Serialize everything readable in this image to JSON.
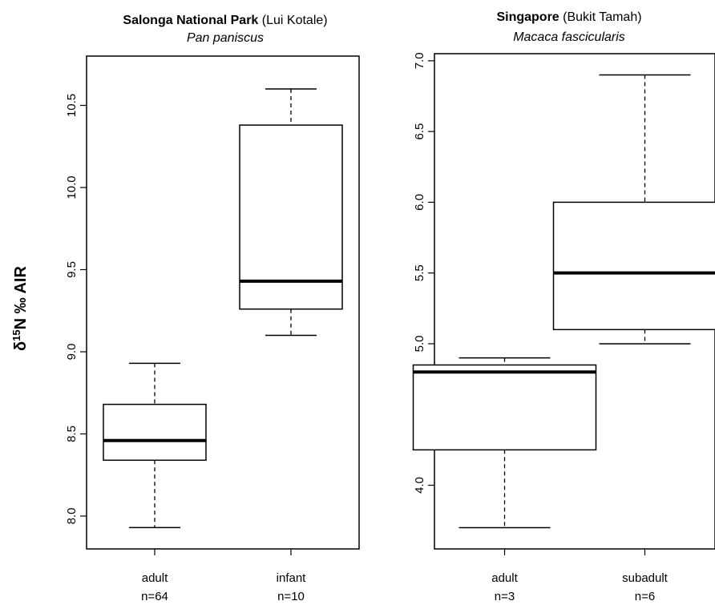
{
  "y_axis_label": {
    "prefix": "δ",
    "superscript": "15",
    "suffix": "N ‰  AIR"
  },
  "chart_data": [
    {
      "type": "boxplot",
      "title_bold": "Salonga National Park",
      "title_regular": " (Lui Kotale)",
      "subtitle": "Pan paniscus",
      "ylim": [
        7.8,
        10.8
      ],
      "yticks": [
        8.0,
        8.5,
        9.0,
        9.5,
        10.0,
        10.5
      ],
      "ytick_labels": [
        "8.0",
        "8.5",
        "9.0",
        "9.5",
        "10.0",
        "10.5"
      ],
      "groups": [
        {
          "label": "adult",
          "n_label": "n=64",
          "min": 7.93,
          "q1": 8.34,
          "median": 8.46,
          "q3": 8.68,
          "max": 8.93
        },
        {
          "label": "infant",
          "n_label": "n=10",
          "min": 9.1,
          "q1": 9.26,
          "median": 9.43,
          "q3": 10.38,
          "max": 10.6
        }
      ]
    },
    {
      "type": "boxplot",
      "title_bold": "Singapore",
      "title_regular": " (Bukit Tamah)",
      "subtitle": "Macaca fascicularis",
      "ylim": [
        3.55,
        7.05
      ],
      "yticks": [
        4.0,
        4.5,
        5.0,
        5.5,
        6.0,
        6.5,
        7.0
      ],
      "ytick_labels": [
        "4.0",
        "4.5",
        "5.0",
        "5.5",
        "6.0",
        "6.5",
        "7.0"
      ],
      "groups": [
        {
          "label": "adult",
          "n_label": "n=3",
          "min": 3.7,
          "q1": 4.25,
          "median": 4.8,
          "q3": 4.85,
          "max": 4.9
        },
        {
          "label": "subadult",
          "n_label": "n=6",
          "min": 5.0,
          "q1": 5.1,
          "median": 5.5,
          "q3": 6.0,
          "max": 6.9
        }
      ]
    }
  ]
}
